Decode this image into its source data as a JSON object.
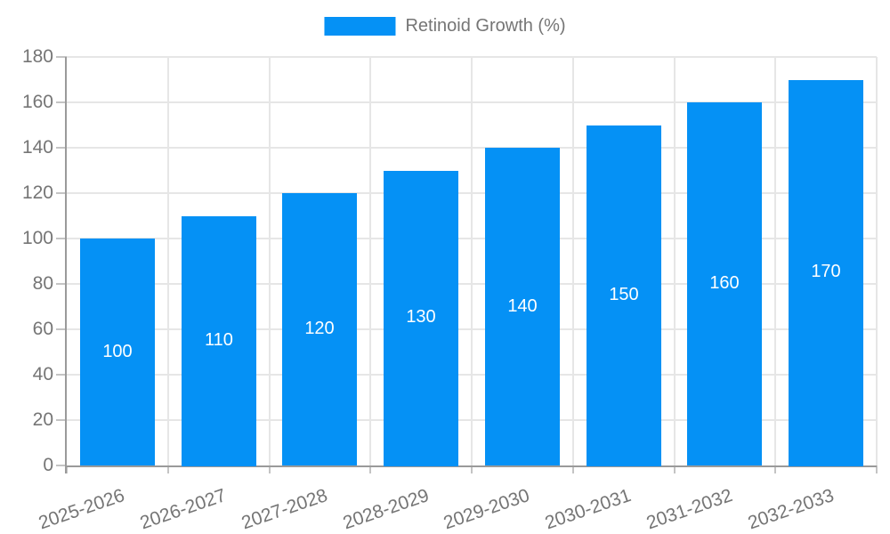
{
  "chart_data": {
    "type": "bar",
    "title": "",
    "legend": {
      "label": "Retinoid Growth (%)",
      "position": "top"
    },
    "categories": [
      "2025-2026",
      "2026-2027",
      "2027-2028",
      "2028-2029",
      "2029-2030",
      "2030-2031",
      "2031-2032",
      "2032-2033"
    ],
    "series": [
      {
        "name": "Retinoid Growth (%)",
        "values": [
          100,
          110,
          120,
          130,
          140,
          150,
          160,
          170
        ]
      }
    ],
    "bar_value_labels": [
      "100",
      "110",
      "120",
      "130",
      "140",
      "150",
      "160",
      "170"
    ],
    "xlabel": "",
    "ylabel": "",
    "ylim": [
      0,
      180
    ],
    "ytick_step": 20,
    "yticks": [
      0,
      20,
      40,
      60,
      80,
      100,
      120,
      140,
      160,
      180
    ],
    "grid": true,
    "x_label_rotation_deg": -19,
    "colors": {
      "bar": "#0591f5",
      "bar_label_text": "#ffffff",
      "axis_text": "#757575",
      "legend_text": "#757575",
      "grid_line": "#e6e6e6",
      "axis_line": "#9a9a9a",
      "tick_mark": "#c4c4c4",
      "background": "#ffffff"
    }
  }
}
